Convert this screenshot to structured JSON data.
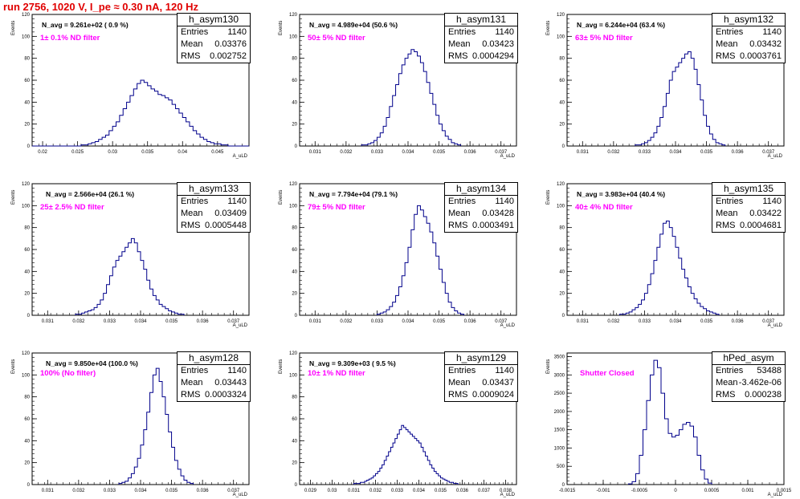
{
  "page": {
    "title": "run 2756,  1020 V, I_pe ≈ 0.30 nA, 120 Hz"
  },
  "colors": {
    "title": "#e00000",
    "annotation": "#ff00ff",
    "histogram": "#00008b"
  },
  "chart_data": [
    {
      "type": "histogram",
      "name": "h_asym130",
      "stats": {
        "entries_label": "Entries",
        "entries": "1140",
        "mean_label": "Mean",
        "mean": "0.03376",
        "rms_label": "RMS",
        "rms": "0.002752"
      },
      "n_avg": "N_avg = 9.261e+02 ( 0.9 %)",
      "annotation": "1± 0.1% ND filter",
      "xlabel": "A_uLD",
      "ylabel": "Events",
      "xlim": [
        0.0185,
        0.0495
      ],
      "ylim": [
        0,
        120
      ],
      "xticks": [
        "0.02",
        "0.025",
        "0.03",
        "0.035",
        "0.04",
        "0.045"
      ],
      "yticks": [
        "0",
        "20",
        "40",
        "60",
        "80",
        "100",
        "120"
      ],
      "bins": {
        "x0": 0.0185,
        "dx": 0.0005,
        "counts": [
          0,
          0,
          0,
          0,
          0,
          0,
          0,
          0,
          0,
          0,
          0,
          0,
          0,
          0,
          1,
          1,
          2,
          3,
          4,
          6,
          8,
          10,
          14,
          18,
          22,
          28,
          34,
          40,
          46,
          52,
          57,
          60,
          58,
          55,
          52,
          50,
          47,
          46,
          44,
          42,
          38,
          34,
          30,
          26,
          22,
          18,
          14,
          11,
          8,
          6,
          4,
          3,
          2,
          2,
          1,
          1,
          0,
          0,
          0,
          0,
          0,
          0
        ]
      }
    },
    {
      "type": "histogram",
      "name": "h_asym131",
      "stats": {
        "entries_label": "Entries",
        "entries": "1140",
        "mean_label": "Mean",
        "mean": "0.03423",
        "rms_label": "RMS",
        "rms": "0.0004294"
      },
      "n_avg": "N_avg = 4.989e+04 (50.6 %)",
      "annotation": "50± 5% ND filter",
      "xlabel": "A_uLD",
      "ylabel": "Events",
      "xlim": [
        0.0305,
        0.0375
      ],
      "ylim": [
        0,
        120
      ],
      "xticks": [
        "0.031",
        "0.032",
        "0.033",
        "0.034",
        "0.035",
        "0.036",
        "0.037"
      ],
      "yticks": [
        "0",
        "20",
        "40",
        "60",
        "80",
        "100",
        "120"
      ],
      "bins": {
        "x0": 0.0325,
        "dx": 0.0001,
        "counts": [
          1,
          1,
          2,
          3,
          5,
          8,
          12,
          18,
          26,
          36,
          46,
          56,
          66,
          74,
          80,
          84,
          88,
          86,
          82,
          76,
          68,
          58,
          48,
          38,
          28,
          20,
          14,
          9,
          6,
          3,
          2,
          1
        ]
      }
    },
    {
      "type": "histogram",
      "name": "h_asym132",
      "stats": {
        "entries_label": "Entries",
        "entries": "1140",
        "mean_label": "Mean",
        "mean": "0.03432",
        "rms_label": "RMS",
        "rms": "0.0003761"
      },
      "n_avg": "N_avg = 6.244e+04 (63.4 %)",
      "annotation": "63± 5% ND filter",
      "xlabel": "A_uLD",
      "ylabel": "Events",
      "xlim": [
        0.0305,
        0.0375
      ],
      "ylim": [
        0,
        120
      ],
      "xticks": [
        "0.031",
        "0.032",
        "0.033",
        "0.034",
        "0.035",
        "0.036",
        "0.037"
      ],
      "yticks": [
        "0",
        "20",
        "40",
        "60",
        "80",
        "100",
        "120"
      ],
      "bins": {
        "x0": 0.0327,
        "dx": 0.0001,
        "counts": [
          1,
          1,
          2,
          3,
          5,
          8,
          12,
          18,
          26,
          36,
          48,
          60,
          68,
          72,
          76,
          80,
          84,
          86,
          80,
          70,
          56,
          42,
          28,
          18,
          11,
          6,
          3,
          2,
          1
        ]
      }
    },
    {
      "type": "histogram",
      "name": "h_asym133",
      "stats": {
        "entries_label": "Entries",
        "entries": "1140",
        "mean_label": "Mean",
        "mean": "0.03409",
        "rms_label": "RMS",
        "rms": "0.0005448"
      },
      "n_avg": "N_avg = 2.566e+04 (26.1 %)",
      "annotation": "25± 2.5% ND filter",
      "xlabel": "A_uLD",
      "ylabel": "Events",
      "xlim": [
        0.0305,
        0.0375
      ],
      "ylim": [
        0,
        120
      ],
      "xticks": [
        "0.031",
        "0.032",
        "0.033",
        "0.034",
        "0.035",
        "0.036",
        "0.037"
      ],
      "yticks": [
        "0",
        "20",
        "40",
        "60",
        "80",
        "100",
        "120"
      ],
      "bins": {
        "x0": 0.0319,
        "dx": 0.0001,
        "counts": [
          1,
          1,
          2,
          3,
          4,
          5,
          7,
          10,
          14,
          20,
          28,
          36,
          44,
          50,
          54,
          58,
          62,
          66,
          70,
          66,
          58,
          50,
          42,
          32,
          24,
          18,
          14,
          10,
          8,
          6,
          4,
          3,
          2,
          1,
          1
        ]
      }
    },
    {
      "type": "histogram",
      "name": "h_asym134",
      "stats": {
        "entries_label": "Entries",
        "entries": "1140",
        "mean_label": "Mean",
        "mean": "0.03428",
        "rms_label": "RMS",
        "rms": "0.0003491"
      },
      "n_avg": "N_avg = 7.794e+04 (79.1 %)",
      "annotation": "79± 5% ND filter",
      "xlabel": "A_uLD",
      "ylabel": "Events",
      "xlim": [
        0.0305,
        0.0375
      ],
      "ylim": [
        0,
        120
      ],
      "xticks": [
        "0.031",
        "0.032",
        "0.033",
        "0.034",
        "0.035",
        "0.036",
        "0.037"
      ],
      "yticks": [
        "0",
        "20",
        "40",
        "60",
        "80",
        "100",
        "120"
      ],
      "bins": {
        "x0": 0.033,
        "dx": 0.0001,
        "counts": [
          1,
          2,
          3,
          5,
          8,
          12,
          18,
          26,
          36,
          48,
          62,
          78,
          92,
          100,
          96,
          90,
          84,
          76,
          66,
          54,
          42,
          30,
          20,
          12,
          7,
          4,
          2,
          1
        ]
      }
    },
    {
      "type": "histogram",
      "name": "h_asym135",
      "stats": {
        "entries_label": "Entries",
        "entries": "1140",
        "mean_label": "Mean",
        "mean": "0.03422",
        "rms_label": "RMS",
        "rms": "0.0004681"
      },
      "n_avg": "N_avg = 3.983e+04 (40.4 %)",
      "annotation": "40± 4% ND filter",
      "xlabel": "A_uLD",
      "ylabel": "Events",
      "xlim": [
        0.0305,
        0.0375
      ],
      "ylim": [
        0,
        120
      ],
      "xticks": [
        "0.031",
        "0.032",
        "0.033",
        "0.034",
        "0.035",
        "0.036",
        "0.037"
      ],
      "yticks": [
        "0",
        "20",
        "40",
        "60",
        "80",
        "100",
        "120"
      ],
      "bins": {
        "x0": 0.0322,
        "dx": 0.0001,
        "counts": [
          1,
          1,
          2,
          3,
          5,
          7,
          10,
          14,
          20,
          28,
          38,
          50,
          62,
          74,
          84,
          86,
          80,
          72,
          62,
          52,
          42,
          34,
          26,
          20,
          15,
          11,
          8,
          6,
          4,
          3,
          2,
          1
        ]
      }
    },
    {
      "type": "histogram",
      "name": "h_asym128",
      "stats": {
        "entries_label": "Entries",
        "entries": "1140",
        "mean_label": "Mean",
        "mean": "0.03443",
        "rms_label": "RMS",
        "rms": "0.0003324"
      },
      "n_avg": "N_avg = 9.850e+04 (100.0 %)",
      "annotation": "100% (No filter)",
      "xlabel": "A_uLD",
      "ylabel": "Events",
      "xlim": [
        0.0305,
        0.0375
      ],
      "ylim": [
        0,
        120
      ],
      "xticks": [
        "0.031",
        "0.032",
        "0.033",
        "0.034",
        "0.035",
        "0.036",
        "0.037"
      ],
      "yticks": [
        "0",
        "20",
        "40",
        "60",
        "80",
        "100",
        "120"
      ],
      "bins": {
        "x0": 0.0333,
        "dx": 0.0001,
        "counts": [
          1,
          2,
          3,
          6,
          10,
          16,
          24,
          36,
          50,
          66,
          84,
          100,
          106,
          94,
          80,
          64,
          48,
          34,
          22,
          14,
          8,
          4,
          2,
          1
        ]
      }
    },
    {
      "type": "histogram",
      "name": "h_asym129",
      "stats": {
        "entries_label": "Entries",
        "entries": "1140",
        "mean_label": "Mean",
        "mean": "0.03437",
        "rms_label": "RMS",
        "rms": "0.0009024"
      },
      "n_avg": "N_avg = 9.309e+03 ( 9.5 %)",
      "annotation": "10± 1% ND filter",
      "xlabel": "A_uLD",
      "ylabel": "Events",
      "xlim": [
        0.0285,
        0.0385
      ],
      "ylim": [
        0,
        120
      ],
      "xticks": [
        "0.029",
        "0.03",
        "0.031",
        "0.032",
        "0.033",
        "0.034",
        "0.035",
        "0.036",
        "0.037",
        "0.038"
      ],
      "yticks": [
        "0",
        "20",
        "40",
        "60",
        "80",
        "100",
        "120"
      ],
      "bins": {
        "x0": 0.031,
        "dx": 0.0001,
        "counts": [
          1,
          1,
          1,
          2,
          2,
          3,
          4,
          5,
          6,
          8,
          10,
          12,
          15,
          18,
          22,
          26,
          30,
          34,
          38,
          42,
          46,
          50,
          54,
          52,
          50,
          48,
          46,
          44,
          42,
          40,
          38,
          34,
          30,
          26,
          22,
          18,
          15,
          12,
          10,
          8,
          6,
          5,
          4,
          3,
          2,
          2,
          1,
          1
        ]
      }
    },
    {
      "type": "histogram",
      "name": "hPed_asym",
      "stats": {
        "entries_label": "Entries",
        "entries": "53488",
        "mean_label": "Mean",
        "mean": "-3.462e-06",
        "rms_label": "RMS",
        "rms": "0.000238"
      },
      "annotation": "Shutter Closed",
      "xlabel": "A_uLD",
      "ylabel": "Events",
      "xlim": [
        -0.0015,
        0.0015
      ],
      "ylim": [
        0,
        3600
      ],
      "xticks": [
        "-0.0015",
        "-0.001",
        "-0.0005",
        "0",
        "0.0005",
        "0.001",
        "0.0015"
      ],
      "yticks": [
        "0",
        "500",
        "1000",
        "1500",
        "2000",
        "2500",
        "3000",
        "3500"
      ],
      "bins": {
        "x0": -0.00065,
        "dx": 5e-05,
        "counts": [
          20,
          80,
          300,
          800,
          1500,
          2300,
          3000,
          3400,
          3200,
          2500,
          1800,
          1400,
          1300,
          1350,
          1500,
          1650,
          1700,
          1600,
          1300,
          800,
          400,
          150,
          40
        ]
      }
    }
  ]
}
